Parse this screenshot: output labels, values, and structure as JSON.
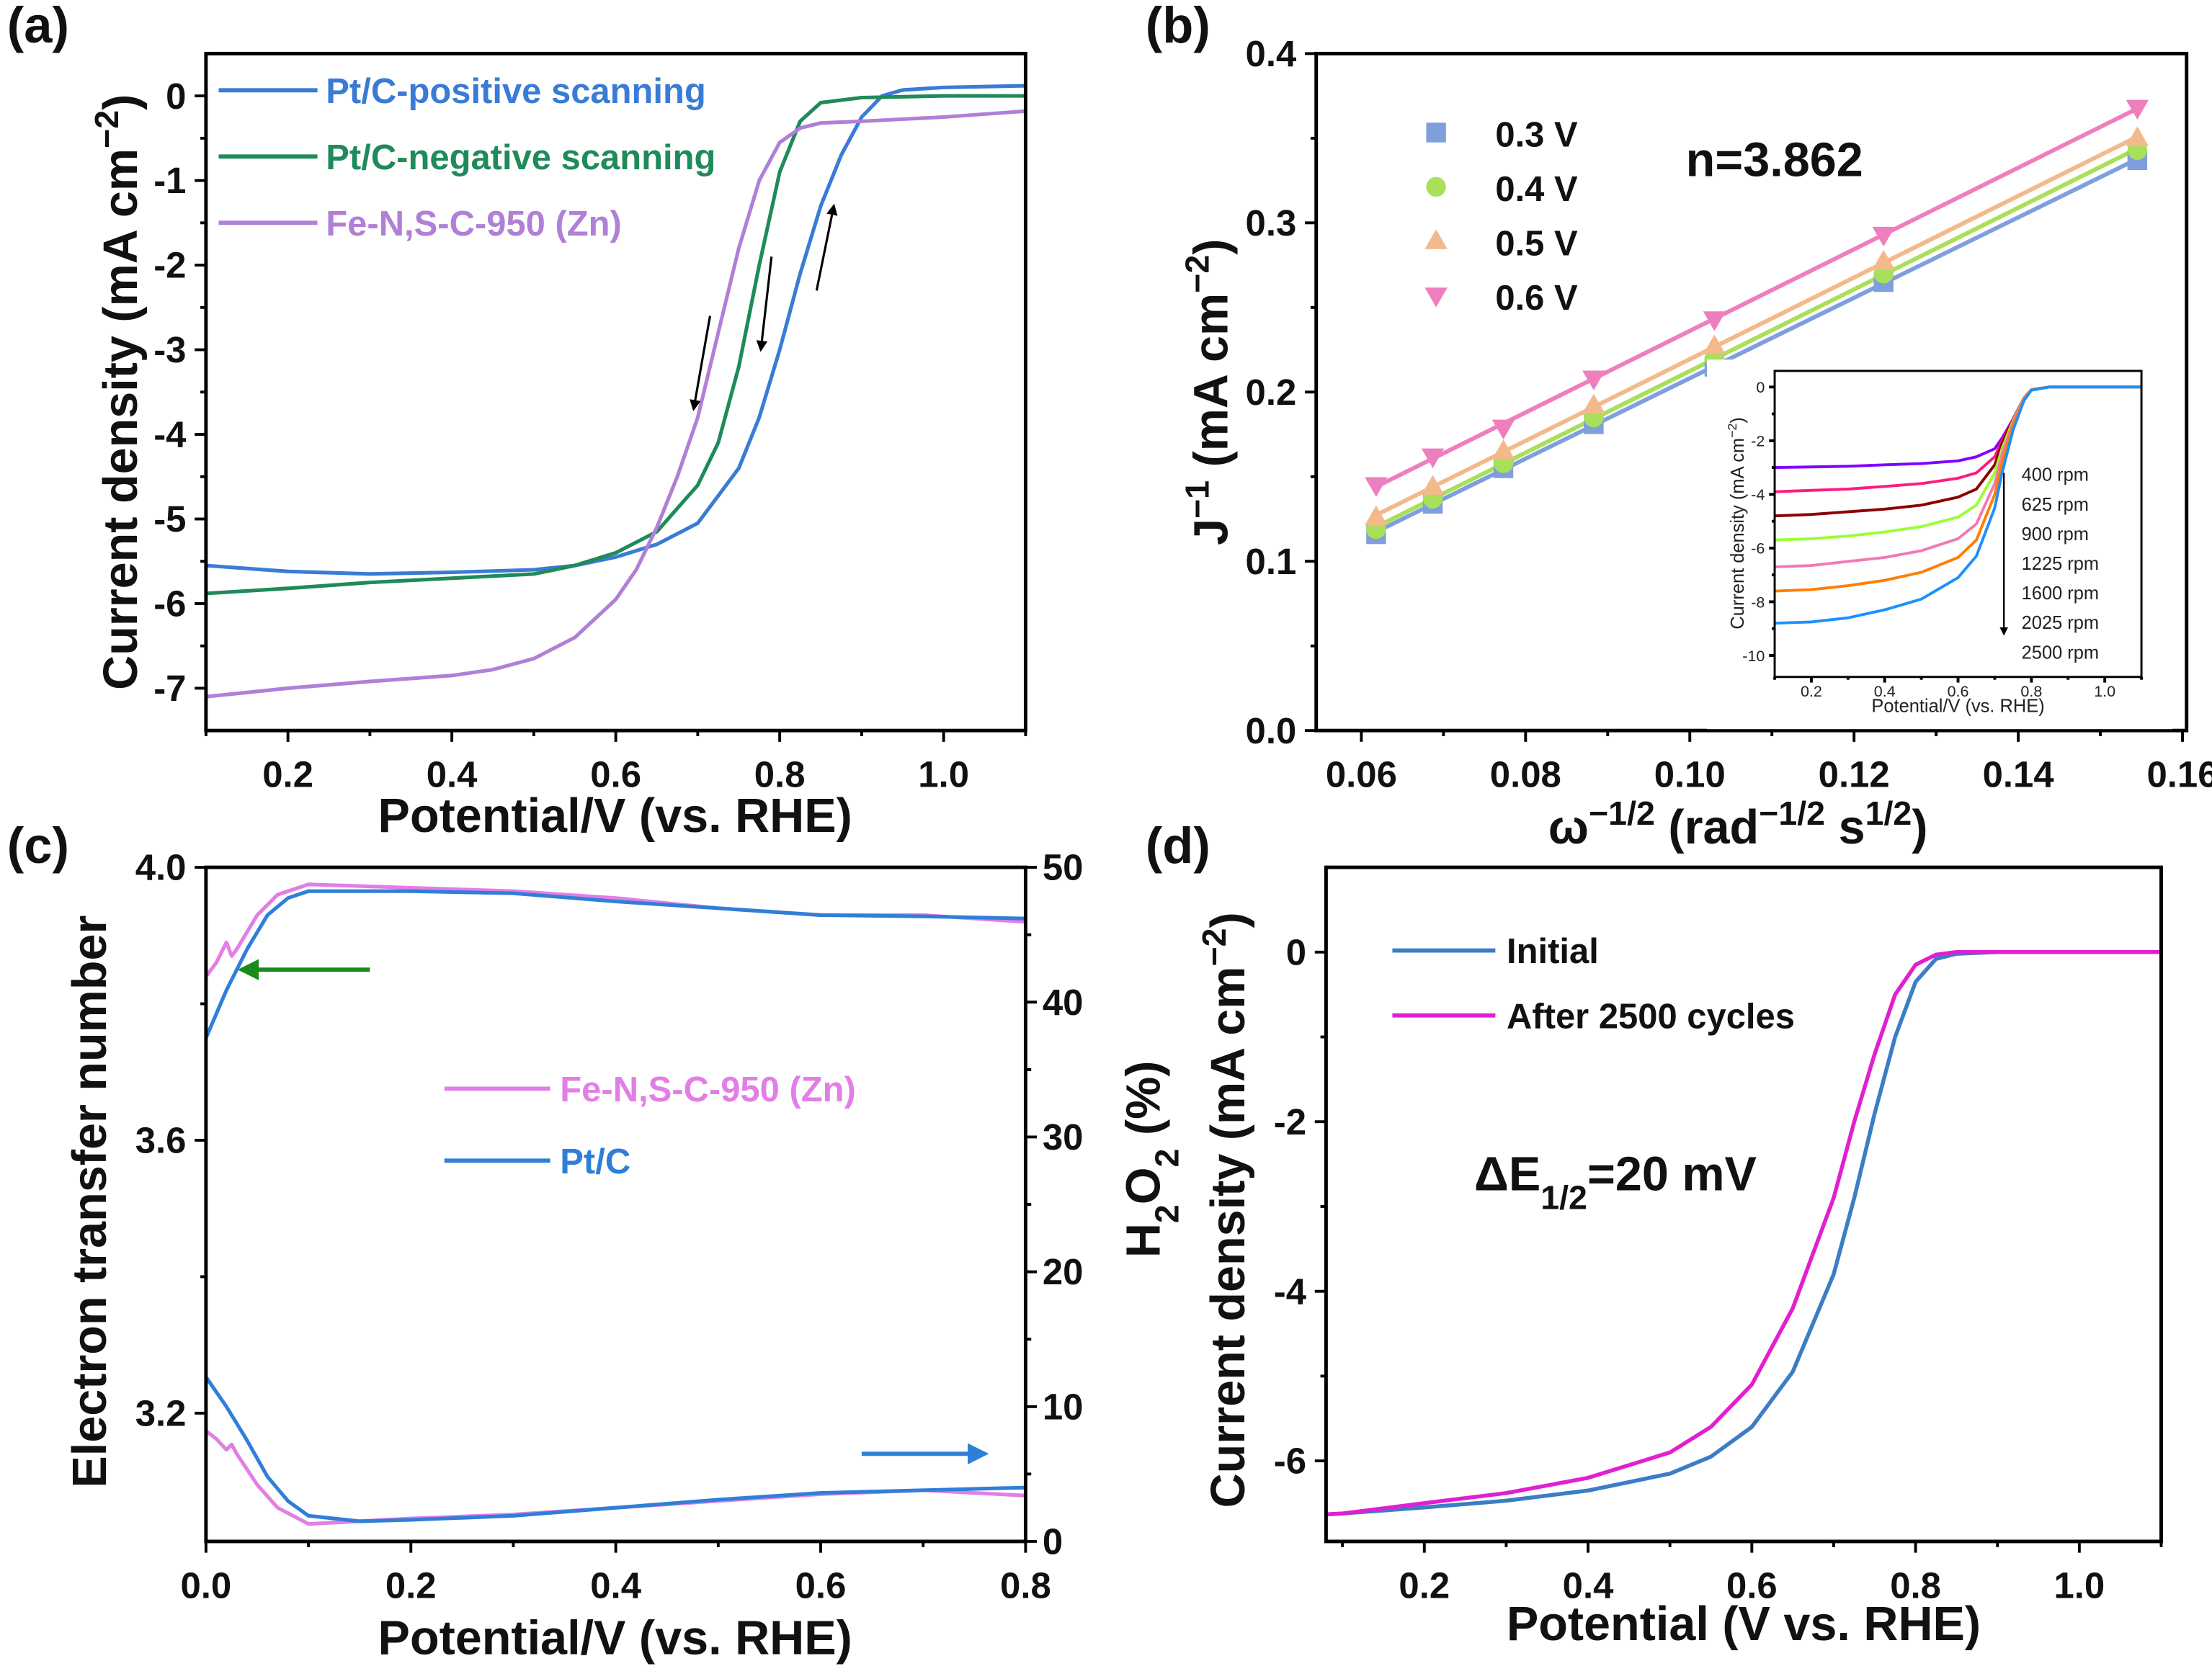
{
  "chart_data": [
    {
      "panel_label": "(a)",
      "type": "line",
      "xlabel": [
        {
          "t": "Potential/V (vs. RHE)",
          "s": ""
        }
      ],
      "ylabel": [
        {
          "t": "Current density (mA cm",
          "s": ""
        },
        {
          "t": "−2",
          "s": "sup"
        },
        {
          "t": ")",
          "s": ""
        }
      ],
      "xlim": [
        0.1,
        1.1
      ],
      "ylim": [
        -7.5,
        0.5
      ],
      "xticks": [
        "0.2",
        "0.4",
        "0.6",
        "0.8",
        "1.0"
      ],
      "yticks": [
        "0",
        "-1",
        "-2",
        "-3",
        "-4",
        "-5",
        "-6",
        "-7"
      ],
      "legend_position": "top-left",
      "series": [
        {
          "name": "Pt/C-positive scanning",
          "color": "#3a7bd5",
          "x": [
            0.1,
            0.2,
            0.3,
            0.4,
            0.5,
            0.55,
            0.6,
            0.65,
            0.7,
            0.75,
            0.775,
            0.8,
            0.825,
            0.85,
            0.875,
            0.9,
            0.925,
            0.95,
            1.0,
            1.1
          ],
          "y": [
            -5.55,
            -5.62,
            -5.65,
            -5.63,
            -5.6,
            -5.55,
            -5.45,
            -5.3,
            -5.05,
            -4.4,
            -3.8,
            -3.0,
            -2.1,
            -1.3,
            -0.7,
            -0.25,
            0.0,
            0.07,
            0.1,
            0.12
          ]
        },
        {
          "name": "Pt/C-negative scanning",
          "color": "#1f8a5a",
          "x": [
            0.1,
            0.2,
            0.3,
            0.4,
            0.5,
            0.55,
            0.6,
            0.65,
            0.7,
            0.725,
            0.75,
            0.775,
            0.8,
            0.825,
            0.85,
            0.9,
            1.0,
            1.1
          ],
          "y": [
            -5.88,
            -5.82,
            -5.75,
            -5.7,
            -5.65,
            -5.55,
            -5.4,
            -5.15,
            -4.6,
            -4.1,
            -3.2,
            -2.0,
            -0.9,
            -0.3,
            -0.08,
            -0.02,
            0,
            0
          ]
        },
        {
          "name": "Fe-N,S-C-950 (Zn)",
          "color": "#b07fd6",
          "x": [
            0.1,
            0.2,
            0.3,
            0.4,
            0.45,
            0.5,
            0.55,
            0.6,
            0.625,
            0.65,
            0.675,
            0.7,
            0.725,
            0.75,
            0.775,
            0.8,
            0.825,
            0.85,
            0.9,
            1.0,
            1.1
          ],
          "y": [
            -7.1,
            -7.0,
            -6.92,
            -6.85,
            -6.78,
            -6.65,
            -6.4,
            -5.95,
            -5.6,
            -5.1,
            -4.5,
            -3.8,
            -2.8,
            -1.8,
            -1.0,
            -0.55,
            -0.38,
            -0.32,
            -0.3,
            -0.25,
            -0.18
          ]
        }
      ],
      "arrows": [
        {
          "from": [
            0.715,
            -2.6
          ],
          "to": [
            0.695,
            -3.7
          ],
          "color": "#000000"
        },
        {
          "from": [
            0.79,
            -1.9
          ],
          "to": [
            0.777,
            -3.0
          ],
          "color": "#000000"
        },
        {
          "from": [
            0.845,
            -2.3
          ],
          "to": [
            0.866,
            -1.3
          ],
          "color": "#000000"
        }
      ]
    },
    {
      "panel_label": "(b)",
      "type": "scatter",
      "xlabel": [
        {
          "t": "ω",
          "s": ""
        },
        {
          "t": "−1/2",
          "s": "sup"
        },
        {
          "t": " (rad",
          "s": ""
        },
        {
          "t": "−1/2",
          "s": "sup"
        },
        {
          "t": " s",
          "s": ""
        },
        {
          "t": "1/2",
          "s": "sup"
        },
        {
          "t": ")",
          "s": ""
        }
      ],
      "ylabel": [
        {
          "t": "J",
          "s": ""
        },
        {
          "t": "−1",
          "s": "sup"
        },
        {
          "t": " (mA cm",
          "s": ""
        },
        {
          "t": "−2",
          "s": "sup"
        },
        {
          "t": ")",
          "s": ""
        }
      ],
      "xlim": [
        0.0545,
        0.1605
      ],
      "ylim": [
        0,
        0.4
      ],
      "xticks": [
        "0.06",
        "0.08",
        "0.10",
        "0.12",
        "0.14",
        "0.16"
      ],
      "yticks": [
        "0.0",
        "0.1",
        "0.2",
        "0.3",
        "0.4"
      ],
      "legend_position": "top-left",
      "annotation": "n=3.862",
      "x": [
        0.0618,
        0.0687,
        0.0773,
        0.0883,
        0.103,
        0.1236,
        0.1545
      ],
      "series": [
        {
          "name": "0.3 V",
          "color": "#7f9fdc",
          "marker": "square",
          "y": [
            0.116,
            0.134,
            0.155,
            0.181,
            0.215,
            0.265,
            0.337
          ]
        },
        {
          "name": "0.4 V",
          "color": "#a8e05a",
          "marker": "circle",
          "y": [
            0.119,
            0.137,
            0.158,
            0.185,
            0.22,
            0.27,
            0.343
          ]
        },
        {
          "name": "0.5 V",
          "color": "#f4b98a",
          "marker": "triangle-up",
          "y": [
            0.126,
            0.144,
            0.165,
            0.192,
            0.227,
            0.277,
            0.35
          ]
        },
        {
          "name": "0.6 V",
          "color": "#ee7fbf",
          "marker": "triangle-down",
          "y": [
            0.145,
            0.162,
            0.179,
            0.208,
            0.243,
            0.293,
            0.368
          ]
        }
      ],
      "inset": {
        "type": "line",
        "xlabel": "Potential/V (vs. RHE)",
        "ylabel": [
          {
            "t": "Current density (mA cm",
            "s": ""
          },
          {
            "t": "−2",
            "s": "sup"
          },
          {
            "t": ")",
            "s": ""
          }
        ],
        "xlim": [
          0.1,
          1.1
        ],
        "ylim": [
          -10.8,
          0.6
        ],
        "xticks": [
          "0.2",
          "0.4",
          "0.6",
          "0.8",
          "1.0"
        ],
        "yticks": [
          "0",
          "-2",
          "-4",
          "-6",
          "-8",
          "-10"
        ],
        "x": [
          0.1,
          0.2,
          0.3,
          0.4,
          0.5,
          0.6,
          0.65,
          0.7,
          0.72,
          0.75,
          0.78,
          0.8,
          0.85,
          1.1
        ],
        "series": [
          {
            "name": "400 rpm",
            "color": "#7f00ff",
            "y": [
              -3.0,
              -2.98,
              -2.95,
              -2.9,
              -2.85,
              -2.75,
              -2.6,
              -2.3,
              -1.9,
              -1.2,
              -0.4,
              -0.1,
              0,
              0
            ]
          },
          {
            "name": "625 rpm",
            "color": "#ff1a80",
            "y": [
              -3.9,
              -3.85,
              -3.8,
              -3.7,
              -3.6,
              -3.4,
              -3.2,
              -2.6,
              -2.0,
              -1.2,
              -0.4,
              -0.1,
              0,
              0
            ]
          },
          {
            "name": "900 rpm",
            "color": "#8b0000",
            "y": [
              -4.8,
              -4.75,
              -4.65,
              -4.55,
              -4.4,
              -4.1,
              -3.8,
              -2.9,
              -2.1,
              -1.2,
              -0.4,
              -0.1,
              0,
              0
            ]
          },
          {
            "name": "1225 rpm",
            "color": "#99ff33",
            "y": [
              -5.7,
              -5.65,
              -5.55,
              -5.4,
              -5.2,
              -4.85,
              -4.4,
              -3.2,
              -2.3,
              -1.25,
              -0.4,
              -0.1,
              0,
              0
            ]
          },
          {
            "name": "1600 rpm",
            "color": "#f07ab4",
            "y": [
              -6.7,
              -6.65,
              -6.5,
              -6.35,
              -6.1,
              -5.65,
              -5.1,
              -3.6,
              -2.5,
              -1.3,
              -0.4,
              -0.1,
              0,
              0
            ]
          },
          {
            "name": "2025 rpm",
            "color": "#ff7f00",
            "y": [
              -7.6,
              -7.55,
              -7.4,
              -7.2,
              -6.9,
              -6.35,
              -5.7,
              -4.0,
              -2.8,
              -1.4,
              -0.45,
              -0.1,
              0,
              0
            ]
          },
          {
            "name": "2500 rpm",
            "color": "#1e8fff",
            "y": [
              -8.8,
              -8.75,
              -8.6,
              -8.3,
              -7.9,
              -7.1,
              -6.3,
              -4.5,
              -3.2,
              -1.6,
              -0.5,
              -0.12,
              0,
              0
            ]
          }
        ],
        "arrow": {
          "from": [
            0.725,
            -3.2
          ],
          "to": [
            0.725,
            -9.2
          ],
          "color": "#000000"
        }
      }
    },
    {
      "panel_label": "(c)",
      "type": "line",
      "xlabel": [
        {
          "t": "Potential/V (vs. RHE)",
          "s": ""
        }
      ],
      "ylabel": [
        {
          "t": "Electron transfer number",
          "s": ""
        }
      ],
      "ylabel_right": [
        {
          "t": "H",
          "s": ""
        },
        {
          "t": "2",
          "s": "sub"
        },
        {
          "t": "O",
          "s": ""
        },
        {
          "t": "2",
          "s": "sub"
        },
        {
          "t": " (%)",
          "s": ""
        }
      ],
      "xlim": [
        0,
        0.8
      ],
      "ylim": [
        3.012,
        4.0
      ],
      "ylim_right": [
        0,
        50
      ],
      "xticks": [
        "0.0",
        "0.2",
        "0.4",
        "0.6",
        "0.8"
      ],
      "yticks": [
        "3.2",
        "3.6",
        "4.0"
      ],
      "yticks_right": [
        "0",
        "10",
        "20",
        "30",
        "40",
        "50"
      ],
      "legend_position": "center",
      "series": [
        {
          "name": "Fe-N,S-C-950 (Zn)",
          "color": "#e27ee6",
          "axis": "left",
          "legend": true,
          "x": [
            0,
            0.01,
            0.02,
            0.025,
            0.03,
            0.05,
            0.07,
            0.1,
            0.2,
            0.3,
            0.4,
            0.5,
            0.6,
            0.7,
            0.8
          ],
          "y": [
            3.84,
            3.86,
            3.89,
            3.87,
            3.88,
            3.93,
            3.96,
            3.975,
            3.97,
            3.965,
            3.955,
            3.94,
            3.93,
            3.93,
            3.92
          ]
        },
        {
          "name": "Pt/C",
          "color": "#2f7fd9",
          "axis": "left",
          "legend": true,
          "x": [
            0,
            0.02,
            0.04,
            0.06,
            0.08,
            0.1,
            0.2,
            0.3,
            0.4,
            0.5,
            0.6,
            0.7,
            0.8
          ],
          "y": [
            3.75,
            3.82,
            3.88,
            3.93,
            3.955,
            3.965,
            3.965,
            3.962,
            3.95,
            3.94,
            3.93,
            3.928,
            3.925
          ]
        },
        {
          "name": "Fe-N,S-C-950 (Zn) H2O2",
          "color": "#e27ee6",
          "axis": "right",
          "legend": false,
          "x": [
            0,
            0.01,
            0.02,
            0.025,
            0.03,
            0.05,
            0.07,
            0.1,
            0.15,
            0.2,
            0.3,
            0.4,
            0.5,
            0.6,
            0.7,
            0.8
          ],
          "y": [
            8.2,
            7.6,
            6.8,
            7.2,
            6.5,
            4.2,
            2.5,
            1.3,
            1.5,
            1.7,
            2.0,
            2.5,
            3.0,
            3.5,
            3.8,
            3.4
          ]
        },
        {
          "name": "Pt/C H2O2",
          "color": "#2f7fd9",
          "axis": "right",
          "legend": false,
          "x": [
            0,
            0.02,
            0.04,
            0.06,
            0.08,
            0.1,
            0.15,
            0.2,
            0.3,
            0.4,
            0.5,
            0.6,
            0.7,
            0.8
          ],
          "y": [
            12.2,
            10,
            7.5,
            4.8,
            3.0,
            1.9,
            1.5,
            1.6,
            1.9,
            2.5,
            3.1,
            3.6,
            3.8,
            4.0
          ]
        }
      ],
      "arrows": [
        {
          "from": [
            0.16,
            3.85
          ],
          "to": [
            0.035,
            3.85
          ],
          "axis": "left",
          "color": "#1a8a1a"
        },
        {
          "from": [
            0.64,
            6.5
          ],
          "to": [
            0.76,
            6.5
          ],
          "axis": "right",
          "color": "#2f7fd9"
        }
      ]
    },
    {
      "panel_label": "(d)",
      "type": "line",
      "xlabel": [
        {
          "t": "Potential (V vs. RHE)",
          "s": ""
        }
      ],
      "ylabel": [
        {
          "t": "Current density (mA cm",
          "s": ""
        },
        {
          "t": "−2",
          "s": "sup"
        },
        {
          "t": ")",
          "s": ""
        }
      ],
      "xlim": [
        0.08,
        1.1
      ],
      "ylim": [
        -6.95,
        1.0
      ],
      "xticks": [
        "0.2",
        "0.4",
        "0.6",
        "0.8",
        "1.0"
      ],
      "yticks": [
        "0",
        "-2",
        "-4",
        "-6"
      ],
      "legend_position": "top-left",
      "annotation": [
        {
          "t": "ΔE",
          "s": ""
        },
        {
          "t": "1/2",
          "s": "sub"
        },
        {
          "t": "=20 mV",
          "s": ""
        }
      ],
      "series": [
        {
          "name": "Initial",
          "color": "#3c7dc4",
          "x": [
            0.08,
            0.1,
            0.2,
            0.3,
            0.4,
            0.5,
            0.55,
            0.6,
            0.65,
            0.7,
            0.725,
            0.75,
            0.775,
            0.8,
            0.825,
            0.85,
            0.9,
            1.1
          ],
          "y": [
            -6.63,
            -6.62,
            -6.55,
            -6.47,
            -6.35,
            -6.15,
            -5.95,
            -5.6,
            -4.95,
            -3.8,
            -2.9,
            -1.9,
            -1.0,
            -0.35,
            -0.08,
            -0.02,
            0,
            0
          ]
        },
        {
          "name": "After 2500 cycles",
          "color": "#e020d0",
          "x": [
            0.08,
            0.1,
            0.2,
            0.3,
            0.4,
            0.5,
            0.55,
            0.6,
            0.65,
            0.7,
            0.725,
            0.75,
            0.775,
            0.8,
            0.825,
            0.85,
            1.1
          ],
          "y": [
            -6.63,
            -6.62,
            -6.5,
            -6.38,
            -6.2,
            -5.9,
            -5.6,
            -5.1,
            -4.2,
            -2.9,
            -2.0,
            -1.2,
            -0.5,
            -0.15,
            -0.03,
            0,
            0
          ]
        }
      ]
    }
  ]
}
